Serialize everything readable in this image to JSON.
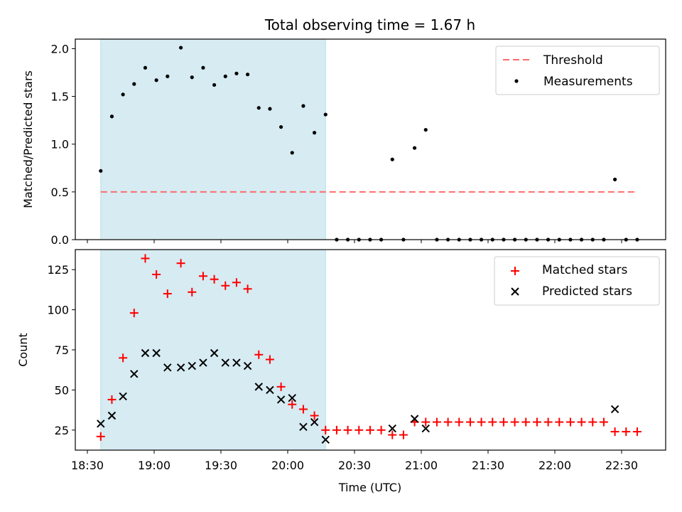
{
  "chart_data": [
    {
      "type": "scatter",
      "title": "Total observing time = 1.67 h",
      "xlabel": "",
      "ylabel": "Matched/Predicted stars",
      "ylim": [
        0,
        2.1
      ],
      "yticks": [
        "0.0",
        "0.5",
        "1.0",
        "1.5",
        "2.0"
      ],
      "grid": false,
      "legend": "top-right",
      "legend_entries": [
        "Threshold",
        "Measurements"
      ],
      "threshold": 0.5,
      "threshold_color": "#ff6b6b",
      "shaded_span": [
        "18:36",
        "20:17"
      ],
      "shade_color": "#add8e6",
      "series": [
        {
          "name": "Measurements",
          "color": "#000000",
          "x": [
            "18:36",
            "18:41",
            "18:46",
            "18:51",
            "18:56",
            "19:01",
            "19:06",
            "19:12",
            "19:17",
            "19:22",
            "19:27",
            "19:32",
            "19:37",
            "19:42",
            "19:47",
            "19:52",
            "19:57",
            "20:02",
            "20:07",
            "20:12",
            "20:17",
            "20:22",
            "20:27",
            "20:32",
            "20:37",
            "20:42",
            "20:47",
            "20:52",
            "20:57",
            "21:02",
            "21:07",
            "21:12",
            "21:17",
            "21:22",
            "21:27",
            "21:32",
            "21:37",
            "21:42",
            "21:47",
            "21:52",
            "21:57",
            "22:02",
            "22:07",
            "22:12",
            "22:17",
            "22:22",
            "22:27",
            "22:32",
            "22:37"
          ],
          "y": [
            0.72,
            1.29,
            1.52,
            1.63,
            1.8,
            1.67,
            1.71,
            2.01,
            1.7,
            1.8,
            1.62,
            1.71,
            1.74,
            1.73,
            1.38,
            1.37,
            1.18,
            0.91,
            1.4,
            1.12,
            1.31,
            0,
            0,
            0,
            0,
            0,
            0.84,
            0,
            0.96,
            1.15,
            0,
            0,
            0,
            0,
            0,
            0,
            0,
            0,
            0,
            0,
            0,
            0,
            0,
            0,
            0,
            0,
            0.63,
            0,
            0
          ]
        }
      ]
    },
    {
      "type": "scatter",
      "title": "",
      "xlabel": "Time (UTC)",
      "ylabel": "Count",
      "ylim": [
        12.5,
        137.5
      ],
      "yticks": [
        "25",
        "50",
        "75",
        "100",
        "125"
      ],
      "xticks": [
        "18:30",
        "19:00",
        "19:30",
        "20:00",
        "20:30",
        "21:00",
        "21:30",
        "22:00",
        "22:30"
      ],
      "grid": false,
      "legend": "top-right",
      "legend_entries": [
        "Matched stars",
        "Predicted stars"
      ],
      "shaded_span": [
        "18:36",
        "20:17"
      ],
      "shade_color": "#add8e6",
      "series": [
        {
          "name": "Matched stars",
          "marker": "+",
          "color": "#ff0000",
          "x": [
            "18:36",
            "18:41",
            "18:46",
            "18:51",
            "18:56",
            "19:01",
            "19:06",
            "19:12",
            "19:17",
            "19:22",
            "19:27",
            "19:32",
            "19:37",
            "19:42",
            "19:47",
            "19:52",
            "19:57",
            "20:02",
            "20:07",
            "20:12",
            "20:17",
            "20:22",
            "20:27",
            "20:32",
            "20:37",
            "20:42",
            "20:47",
            "20:52",
            "20:57",
            "21:02",
            "21:07",
            "21:12",
            "21:17",
            "21:22",
            "21:27",
            "21:32",
            "21:37",
            "21:42",
            "21:47",
            "21:52",
            "21:57",
            "22:02",
            "22:07",
            "22:12",
            "22:17",
            "22:22",
            "22:27",
            "22:32",
            "22:37"
          ],
          "y": [
            21,
            44,
            70,
            98,
            132,
            122,
            110,
            129,
            111,
            121,
            119,
            115,
            117,
            113,
            72,
            69,
            52,
            41,
            38,
            34,
            25,
            25,
            25,
            25,
            25,
            25,
            22,
            22,
            30,
            30,
            30,
            30,
            30,
            30,
            30,
            30,
            30,
            30,
            30,
            30,
            30,
            30,
            30,
            30,
            30,
            30,
            24,
            24,
            24
          ]
        },
        {
          "name": "Predicted stars",
          "marker": "x",
          "color": "#000000",
          "x": [
            "18:36",
            "18:41",
            "18:46",
            "18:51",
            "18:56",
            "19:01",
            "19:06",
            "19:12",
            "19:17",
            "19:22",
            "19:27",
            "19:32",
            "19:37",
            "19:42",
            "19:47",
            "19:52",
            "19:57",
            "20:02",
            "20:07",
            "20:12",
            "20:17",
            "20:47",
            "20:57",
            "21:02",
            "22:27"
          ],
          "y": [
            29,
            34,
            46,
            60,
            73,
            73,
            64,
            64,
            65,
            67,
            73,
            67,
            67,
            65,
            52,
            50,
            44,
            45,
            27,
            30,
            19,
            26,
            32,
            26,
            38
          ]
        }
      ]
    }
  ]
}
